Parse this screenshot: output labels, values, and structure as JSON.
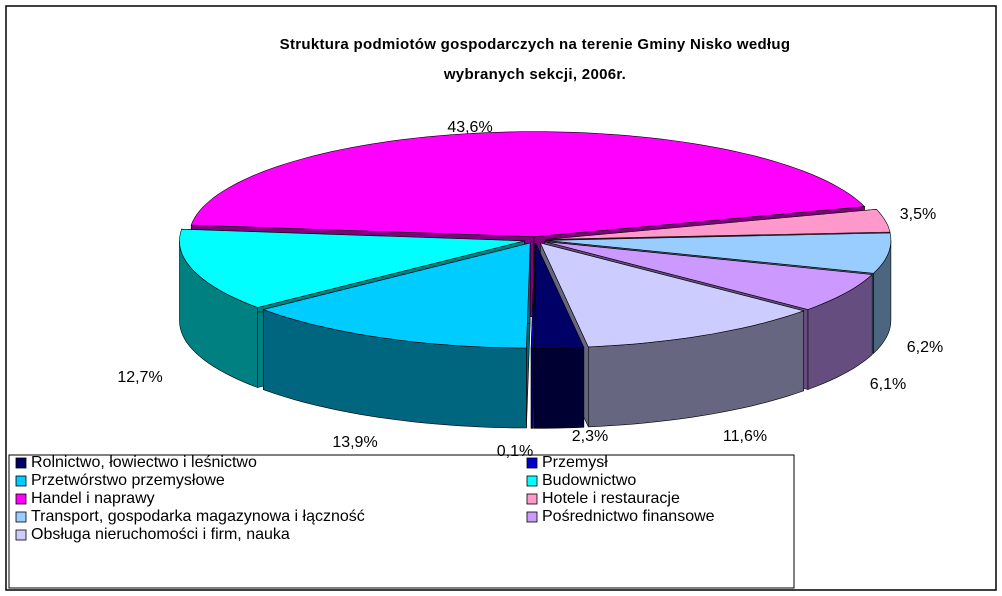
{
  "chart_data": {
    "type": "pie",
    "title": "Struktura podmiotów gospodarczych na terenie Gminy Nisko według wybranych sekcji, 2006r.",
    "categories": [
      "Rolnictwo, łowiectwo i leśnictwo",
      "Przemysł",
      "Przetwórstwo przemysłowe",
      "Budownictwo",
      "Handel i naprawy",
      "Hotele i restauracje",
      "Transport, gospodarka magazynowa i łączność",
      "Pośrednictwo finansowe",
      "Obsługa nieruchomości i firm, nauka"
    ],
    "values": [
      2.3,
      0.1,
      13.9,
      12.7,
      43.6,
      3.5,
      6.2,
      6.1,
      11.6
    ],
    "value_labels": [
      "2,3%",
      "0,1%",
      "13,9%",
      "12,7%",
      "43,6%",
      "3,5%",
      "6,2%",
      "6,1%",
      "11,6%"
    ],
    "colors": [
      "#000066",
      "#0000cc",
      "#00ccff",
      "#00ffff",
      "#ff00ff",
      "#ff99cc",
      "#99ccff",
      "#cc99ff",
      "#ccccff"
    ],
    "legend": "bottom"
  }
}
